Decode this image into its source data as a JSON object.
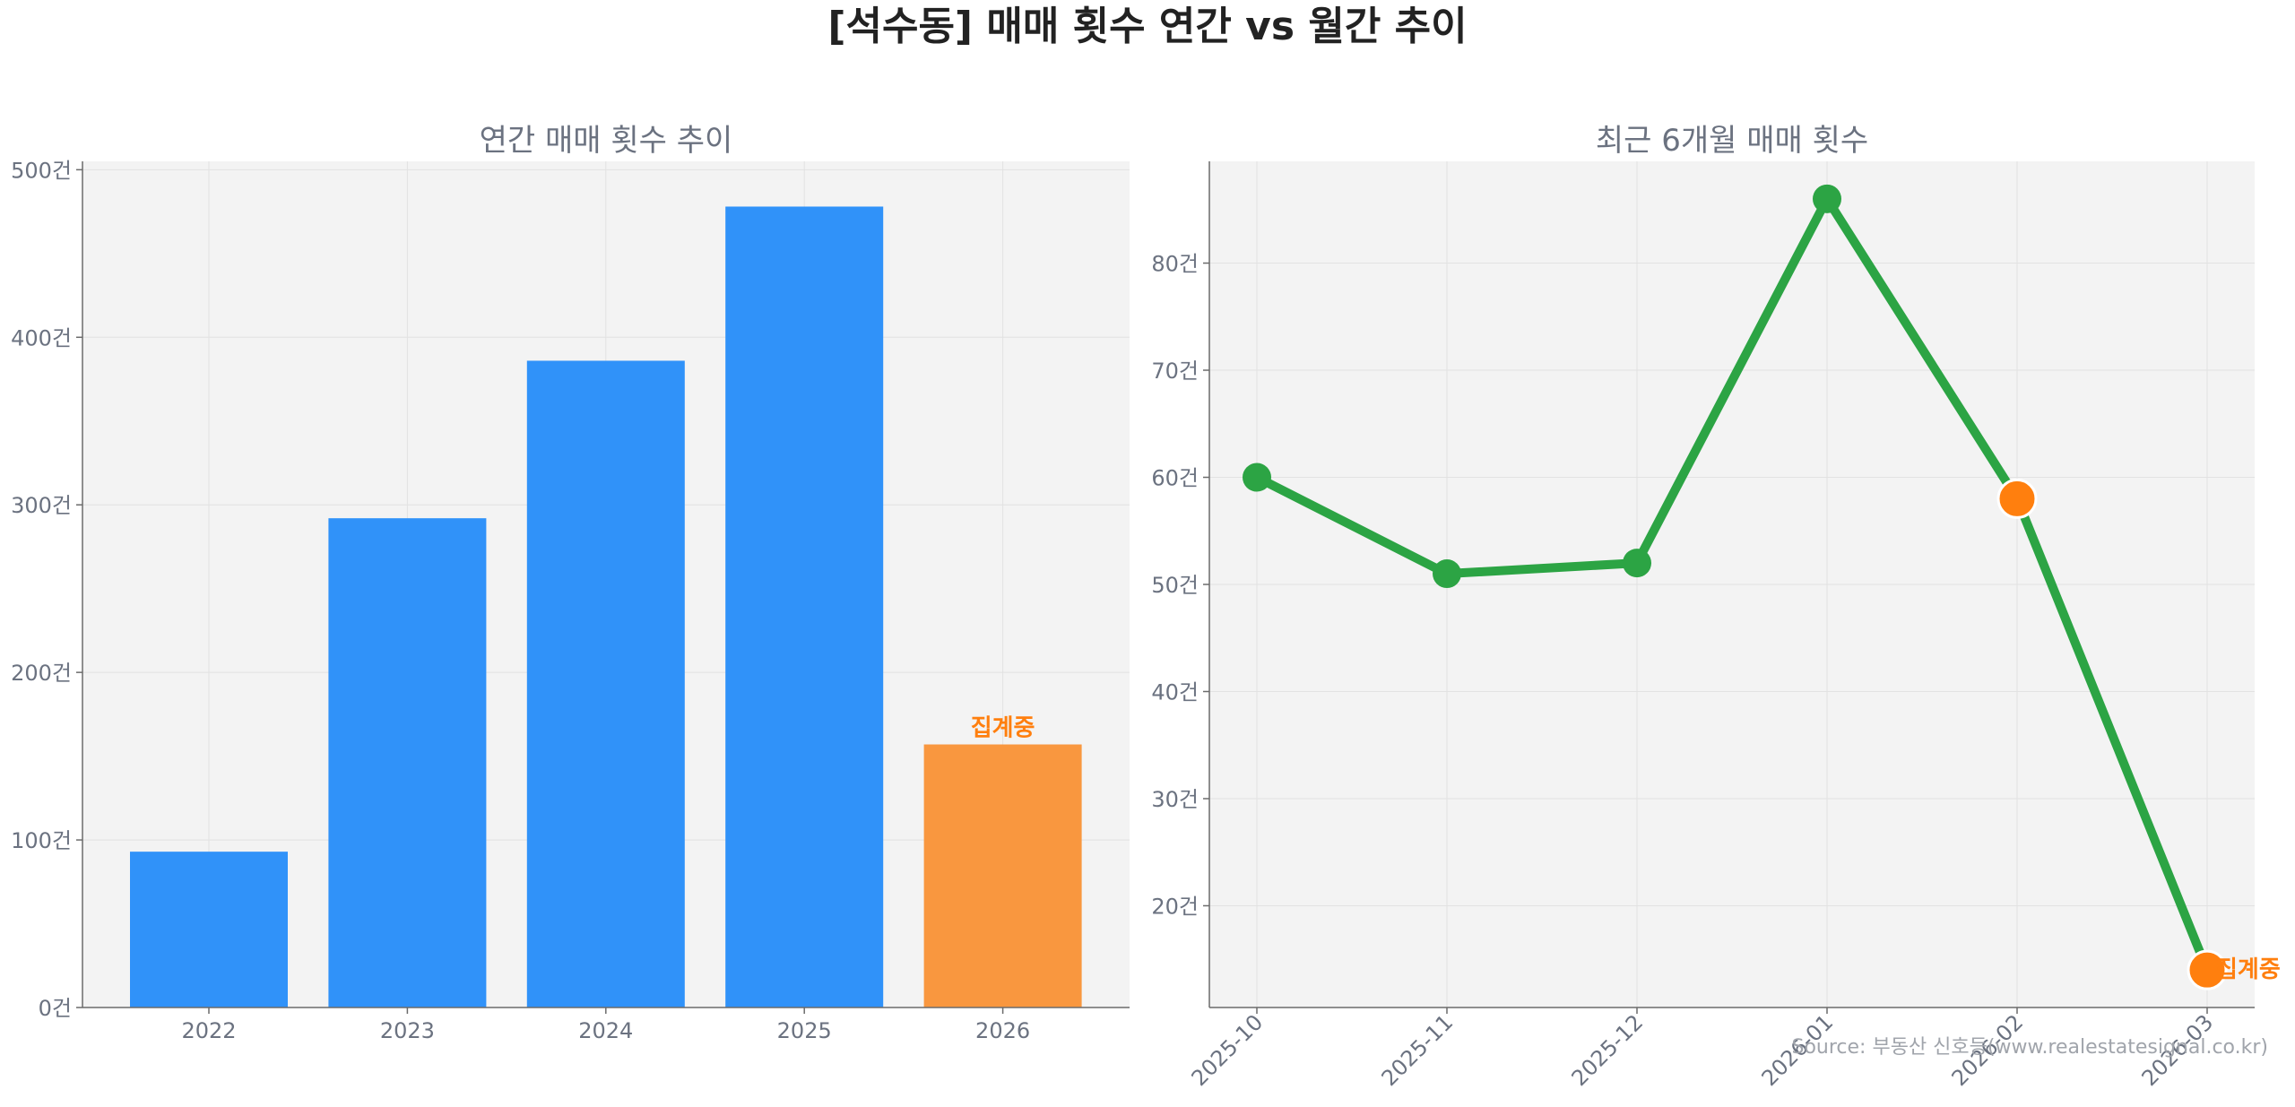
{
  "suptitle": "[석수동] 매매 횟수 연간 vs 월간 추이",
  "source": "Source: 부동산 신호등(www.realestatesignal.co.kr)",
  "colors": {
    "bar": "#3092f9",
    "bar_partial": "#f9973f",
    "line": "#2ca444",
    "marker_partial": "#ff7f0e",
    "annotation": "#ff7f0e",
    "plot_bg": "#f3f3f3",
    "grid": "#e2e2e2",
    "axis": "#6b6b6b"
  },
  "chart_data": [
    {
      "type": "bar",
      "title": "연간 매매 횟수 추이",
      "xlabel": "",
      "ylabel": "",
      "categories": [
        "2022",
        "2023",
        "2024",
        "2025",
        "2026"
      ],
      "values": [
        93,
        292,
        386,
        478,
        157
      ],
      "ylim": [
        0,
        505
      ],
      "yticks": [
        0,
        100,
        200,
        300,
        400,
        500
      ],
      "ytick_labels": [
        "0건",
        "100건",
        "200건",
        "300건",
        "400건",
        "500건"
      ],
      "highlight_index": 4,
      "annotation": {
        "index": 4,
        "text": "집계중"
      },
      "grid": true,
      "legend": "none"
    },
    {
      "type": "line",
      "title": "최근 6개월 매매 횟수",
      "xlabel": "",
      "ylabel": "",
      "categories": [
        "2025-10",
        "2025-11",
        "2025-12",
        "2026-01",
        "2026-02",
        "2026-03"
      ],
      "values": [
        60,
        51,
        52,
        86,
        58,
        14
      ],
      "ylim": [
        10.5,
        89.5
      ],
      "yticks": [
        20,
        30,
        40,
        50,
        60,
        70,
        80
      ],
      "ytick_labels": [
        "20건",
        "30건",
        "40건",
        "50건",
        "60건",
        "70건",
        "80건"
      ],
      "highlight_indices": [
        4,
        5
      ],
      "annotation": {
        "index": 5,
        "text": "집계중"
      },
      "grid": true,
      "legend": "none"
    }
  ]
}
